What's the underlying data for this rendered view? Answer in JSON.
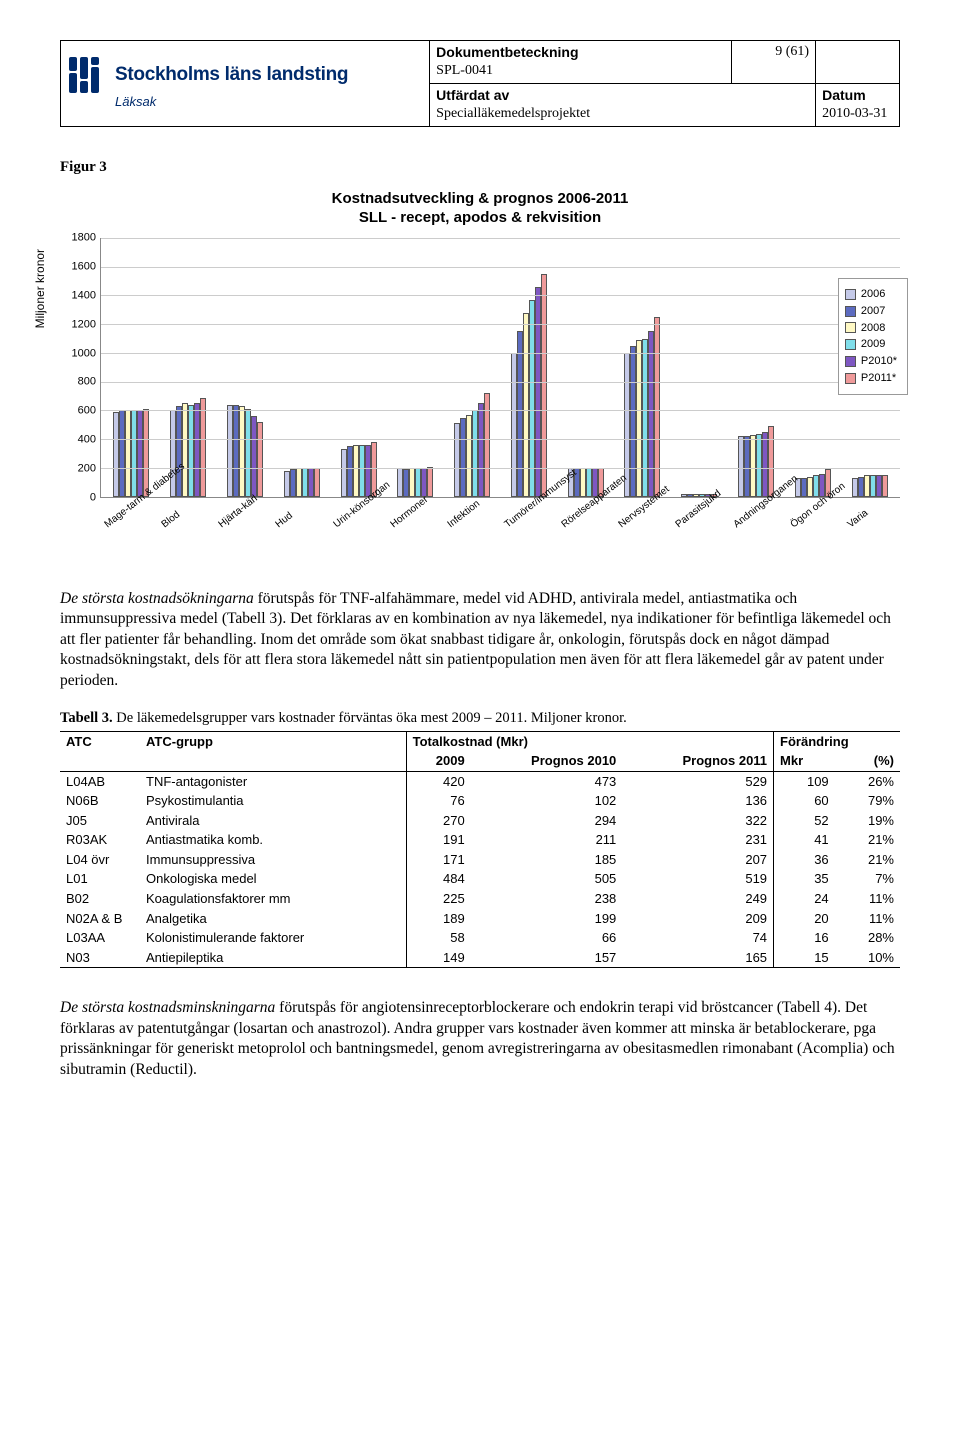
{
  "header": {
    "org_line1": "Stockholms läns landsting",
    "org_line2": "Läksak",
    "dokumentbeteckning_label": "Dokumentbeteckning",
    "dokumentbeteckning": "SPL-0041",
    "page": "9 (61)",
    "utfardat_av_label": "Utfärdat av",
    "utfardat_av": "Specialläkemedelsprojektet",
    "datum_label": "Datum",
    "datum": "2010-03-31"
  },
  "figure3": {
    "label": "Figur 3",
    "chart": {
      "type": "grouped-bar",
      "title": "Kostnadsutveckling & prognos 2006-2011\nSLL - recept, apodos & rekvisition",
      "ylabel": "Miljoner kronor",
      "ymax": 1800,
      "ystep": 200,
      "background_color": "#ffffff",
      "grid_color": "#cccccc",
      "border_color": "#888888",
      "label_font": "Arial",
      "label_fontsize": 11,
      "series": [
        {
          "name": "2006",
          "color": "#c5cae9"
        },
        {
          "name": "2007",
          "color": "#5c6bc0"
        },
        {
          "name": "2008",
          "color": "#fff9c4"
        },
        {
          "name": "2009",
          "color": "#80deea"
        },
        {
          "name": "P2010*",
          "color": "#7e57c2"
        },
        {
          "name": "P2011*",
          "color": "#ef9a9a"
        }
      ],
      "categories": [
        {
          "label": "Mage-tarm & diabetes",
          "values": [
            590,
            600,
            600,
            600,
            600,
            610
          ]
        },
        {
          "label": "Blod",
          "values": [
            600,
            630,
            650,
            640,
            650,
            690
          ]
        },
        {
          "label": "Hjärta-kärl",
          "values": [
            640,
            640,
            630,
            610,
            560,
            520
          ]
        },
        {
          "label": "Hud",
          "values": [
            180,
            190,
            200,
            200,
            200,
            200
          ]
        },
        {
          "label": "Urin-könsorgan",
          "values": [
            330,
            350,
            360,
            360,
            360,
            380
          ]
        },
        {
          "label": "Hormoner",
          "values": [
            200,
            190,
            200,
            200,
            200,
            210
          ]
        },
        {
          "label": "Infektion",
          "values": [
            510,
            550,
            570,
            600,
            650,
            720
          ]
        },
        {
          "label": "Tumörer/immunsyst",
          "values": [
            1000,
            1150,
            1280,
            1370,
            1460,
            1550
          ]
        },
        {
          "label": "Rörelseapparaten",
          "values": [
            200,
            200,
            200,
            200,
            200,
            200
          ]
        },
        {
          "label": "Nervsystemet",
          "values": [
            1000,
            1050,
            1090,
            1100,
            1150,
            1250
          ]
        },
        {
          "label": "Parasitsjukd",
          "values": [
            20,
            20,
            20,
            20,
            20,
            20
          ]
        },
        {
          "label": "Andningsorganen",
          "values": [
            420,
            420,
            430,
            440,
            450,
            490
          ]
        },
        {
          "label": "Ögon och öron",
          "values": [
            130,
            130,
            140,
            150,
            160,
            190
          ]
        },
        {
          "label": "Varia",
          "values": [
            130,
            140,
            150,
            150,
            150,
            150
          ]
        }
      ]
    }
  },
  "para1": "De största kostnadsökningarna förutspås för TNF-alfahämmare, medel vid ADHD, antivirala medel, antiastmatika och immunsuppressiva medel (Tabell 3). Det förklaras av en kombination av nya läkemedel, nya indikationer för befintliga läkemedel och att fler patienter får behandling. Inom det område som ökat snabbast tidigare år, onkologin, förutspås dock en något dämpad kostnadsökningstakt, dels för att flera stora läkemedel nått sin patientpopulation men även för att flera läkemedel går av patent under perioden.",
  "para1_lead": "De största kostnadsökningarna",
  "table3": {
    "caption_bold": "Tabell 3.",
    "caption_rest": " De läkemedelsgrupper vars kostnader förväntas öka mest 2009 – 2011. Miljoner kronor.",
    "headers": {
      "atc": "ATC",
      "grupp": "ATC-grupp",
      "total": "Totalkostnad (Mkr)",
      "forandring": "Förändring",
      "y2009": "2009",
      "p2010": "Prognos 2010",
      "p2011": "Prognos 2011",
      "mkr": "Mkr",
      "pct": "(%)"
    },
    "rows": [
      {
        "atc": "L04AB",
        "grupp": "TNF-antagonister",
        "y2009": 420,
        "p2010": 473,
        "p2011": 529,
        "mkr": 109,
        "pct": "26%"
      },
      {
        "atc": "N06B",
        "grupp": "Psykostimulantia",
        "y2009": 76,
        "p2010": 102,
        "p2011": 136,
        "mkr": 60,
        "pct": "79%"
      },
      {
        "atc": "J05",
        "grupp": "Antivirala",
        "y2009": 270,
        "p2010": 294,
        "p2011": 322,
        "mkr": 52,
        "pct": "19%"
      },
      {
        "atc": "R03AK",
        "grupp": "Antiastmatika komb.",
        "y2009": 191,
        "p2010": 211,
        "p2011": 231,
        "mkr": 41,
        "pct": "21%"
      },
      {
        "atc": "L04 övr",
        "grupp": "Immunsuppressiva",
        "y2009": 171,
        "p2010": 185,
        "p2011": 207,
        "mkr": 36,
        "pct": "21%"
      },
      {
        "atc": "L01",
        "grupp": "Onkologiska medel",
        "y2009": 484,
        "p2010": 505,
        "p2011": 519,
        "mkr": 35,
        "pct": "7%"
      },
      {
        "atc": "B02",
        "grupp": "Koagulationsfaktorer mm",
        "y2009": 225,
        "p2010": 238,
        "p2011": 249,
        "mkr": 24,
        "pct": "11%"
      },
      {
        "atc": "N02A & B",
        "grupp": "Analgetika",
        "y2009": 189,
        "p2010": 199,
        "p2011": 209,
        "mkr": 20,
        "pct": "11%"
      },
      {
        "atc": "L03AA",
        "grupp": "Kolonistimulerande faktorer",
        "y2009": 58,
        "p2010": 66,
        "p2011": 74,
        "mkr": 16,
        "pct": "28%"
      },
      {
        "atc": "N03",
        "grupp": "Antiepileptika",
        "y2009": 149,
        "p2010": 157,
        "p2011": 165,
        "mkr": 15,
        "pct": "10%"
      }
    ]
  },
  "para2": "De största kostnadsminskningarna förutspås för angiotensinreceptorblockerare och endokrin terapi vid bröstcancer (Tabell 4). Det förklaras av patentutgångar (losartan och anastrozol). Andra grupper vars kostnader även kommer att minska är betablockerare, pga prissänkningar för generiskt metoprolol och bantningsmedel, genom avregistreringarna av obesitasmedlen rimonabant (Acomplia) och sibutramin (Reductil).",
  "para2_lead": "De största kostnadsminskningarna"
}
